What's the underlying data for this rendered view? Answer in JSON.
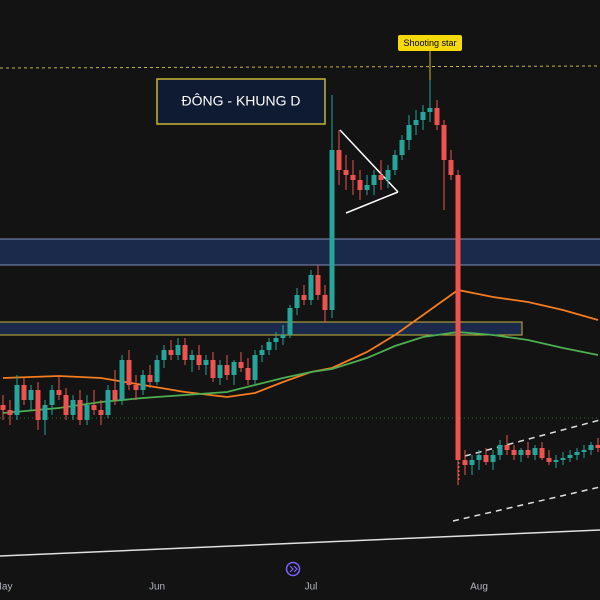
{
  "chart_data": {
    "type": "candlestick",
    "annotations": {
      "box_label": "ĐÔNG - KHUNG D",
      "marker": "Shooting star"
    },
    "ylim": [
      0,
      600
    ],
    "up_color": "#26a69a",
    "down_color": "#ef5350",
    "categories": [
      "May",
      null,
      null,
      null,
      null,
      null,
      null,
      null,
      null,
      null,
      null,
      null,
      null,
      null,
      null,
      null,
      null,
      null,
      null,
      null,
      null,
      null,
      "Jun",
      null,
      null,
      null,
      null,
      null,
      null,
      null,
      null,
      null,
      null,
      null,
      null,
      null,
      null,
      null,
      null,
      null,
      null,
      null,
      null,
      null,
      "Jul",
      null,
      null,
      null,
      null,
      null,
      null,
      null,
      null,
      null,
      null,
      null,
      null,
      null,
      null,
      null,
      null,
      null,
      null,
      null,
      null,
      null,
      null,
      null,
      "Aug",
      null,
      null,
      null,
      null,
      null,
      null,
      null,
      null,
      null,
      null,
      null,
      null,
      null,
      null,
      null,
      null,
      null
    ],
    "open": [
      195,
      190,
      185,
      215,
      200,
      210,
      180,
      195,
      210,
      205,
      185,
      200,
      180,
      195,
      190,
      185,
      210,
      200,
      240,
      215,
      210,
      225,
      218,
      240,
      250,
      245,
      255,
      240,
      245,
      235,
      240,
      222,
      235,
      225,
      238,
      232,
      220,
      245,
      250,
      258,
      262,
      265,
      292,
      305,
      300,
      325,
      305,
      290,
      450,
      430,
      425,
      420,
      410,
      415,
      425,
      420,
      430,
      445,
      460,
      475,
      480,
      488,
      492,
      475,
      440,
      425,
      140,
      135,
      140,
      145,
      138,
      145,
      155,
      150,
      145,
      150,
      145,
      152,
      142,
      138,
      140,
      142,
      145,
      148,
      150,
      155
    ],
    "high": [
      205,
      200,
      225,
      222,
      215,
      218,
      200,
      215,
      225,
      212,
      205,
      210,
      205,
      210,
      200,
      215,
      230,
      245,
      250,
      225,
      230,
      235,
      245,
      255,
      260,
      262,
      262,
      250,
      255,
      245,
      248,
      240,
      245,
      240,
      248,
      242,
      250,
      255,
      262,
      268,
      275,
      295,
      312,
      315,
      330,
      335,
      315,
      505,
      470,
      445,
      440,
      430,
      425,
      430,
      440,
      435,
      450,
      465,
      485,
      490,
      495,
      520,
      500,
      480,
      450,
      430,
      150,
      145,
      150,
      152,
      150,
      160,
      165,
      155,
      152,
      158,
      155,
      158,
      150,
      145,
      148,
      150,
      152,
      155,
      158,
      162
    ],
    "low": [
      180,
      175,
      180,
      195,
      190,
      170,
      165,
      185,
      200,
      180,
      180,
      175,
      175,
      185,
      175,
      182,
      195,
      195,
      210,
      200,
      205,
      212,
      215,
      232,
      240,
      240,
      235,
      228,
      230,
      225,
      218,
      215,
      220,
      215,
      228,
      215,
      215,
      238,
      245,
      250,
      255,
      262,
      285,
      295,
      295,
      300,
      278,
      282,
      415,
      410,
      405,
      400,
      405,
      405,
      410,
      412,
      425,
      440,
      450,
      465,
      470,
      478,
      470,
      390,
      420,
      115,
      125,
      125,
      130,
      135,
      130,
      140,
      145,
      140,
      138,
      142,
      140,
      140,
      135,
      132,
      135,
      138,
      140,
      142,
      145,
      148
    ],
    "close": [
      190,
      185,
      215,
      200,
      210,
      180,
      195,
      210,
      205,
      185,
      200,
      180,
      195,
      190,
      185,
      210,
      200,
      240,
      215,
      210,
      225,
      218,
      240,
      250,
      245,
      255,
      240,
      245,
      235,
      240,
      222,
      235,
      225,
      238,
      232,
      220,
      245,
      250,
      258,
      262,
      265,
      292,
      305,
      300,
      325,
      305,
      290,
      450,
      430,
      425,
      420,
      410,
      415,
      425,
      420,
      430,
      445,
      460,
      475,
      480,
      488,
      492,
      475,
      440,
      425,
      140,
      135,
      140,
      145,
      138,
      145,
      155,
      150,
      145,
      150,
      145,
      152,
      142,
      138,
      140,
      142,
      145,
      148,
      150,
      155,
      152
    ],
    "ma_lines": [
      {
        "color": "#f57c1f",
        "x": [
          0,
          8,
          14,
          20,
          26,
          32,
          36,
          40,
          44,
          47,
          52,
          56,
          60,
          65,
          70,
          75,
          80,
          85
        ],
        "values": [
          222,
          224,
          222,
          215,
          208,
          203,
          207,
          218,
          228,
          232,
          248,
          265,
          285,
          310,
          303,
          298,
          290,
          280
        ]
      },
      {
        "color": "#4caf50",
        "x": [
          0,
          8,
          14,
          20,
          26,
          32,
          36,
          40,
          44,
          47,
          52,
          56,
          60,
          65,
          70,
          75,
          80,
          85
        ],
        "values": [
          187,
          192,
          198,
          202,
          205,
          208,
          215,
          222,
          228,
          231,
          242,
          254,
          263,
          268,
          265,
          260,
          252,
          245
        ]
      }
    ]
  }
}
